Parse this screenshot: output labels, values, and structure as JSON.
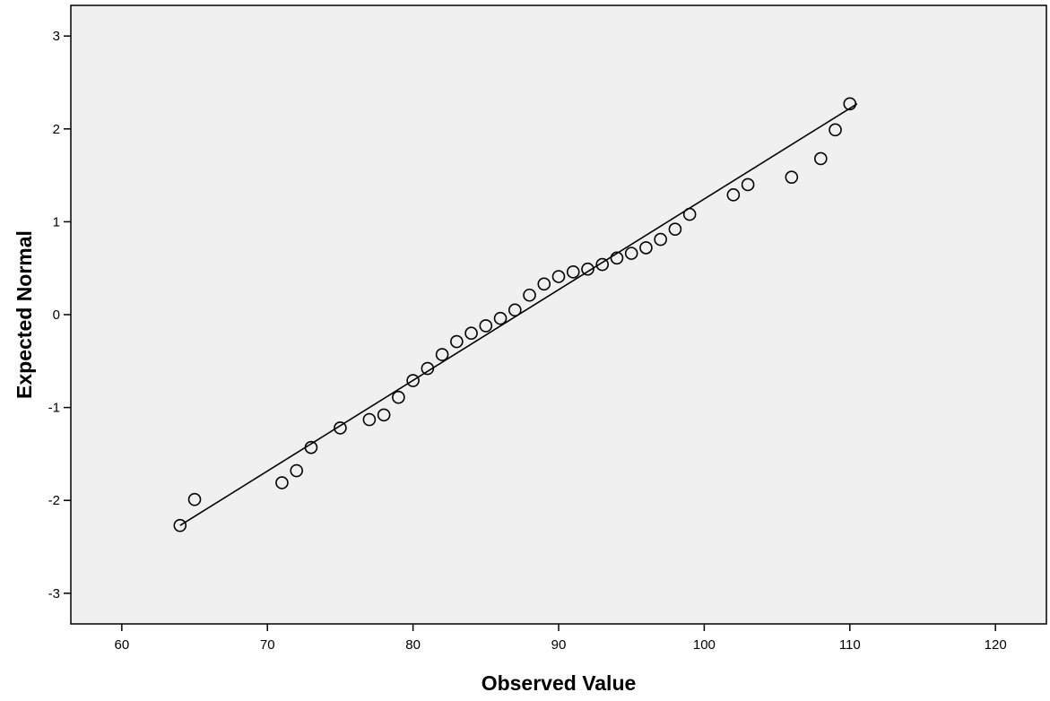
{
  "chart_data": {
    "type": "scatter",
    "title": "",
    "xlabel": "Observed Value",
    "ylabel": "Expected Normal",
    "xlim": [
      56.5,
      123.5
    ],
    "ylim": [
      -3.33,
      3.33
    ],
    "x_ticks": [
      60,
      70,
      80,
      90,
      100,
      110,
      120
    ],
    "y_ticks": [
      -3,
      -2,
      -1,
      0,
      1,
      2,
      3
    ],
    "grid": false,
    "background_color": "#f0f0f0",
    "marker": "open-circle",
    "reference_line": {
      "x": [
        64,
        110.5
      ],
      "y": [
        -2.27,
        2.27
      ]
    },
    "points": [
      {
        "x": 64,
        "y": -2.27
      },
      {
        "x": 65,
        "y": -1.99
      },
      {
        "x": 71,
        "y": -1.81
      },
      {
        "x": 72,
        "y": -1.68
      },
      {
        "x": 73,
        "y": -1.43
      },
      {
        "x": 75,
        "y": -1.22
      },
      {
        "x": 77,
        "y": -1.13
      },
      {
        "x": 78,
        "y": -1.08
      },
      {
        "x": 79,
        "y": -0.89
      },
      {
        "x": 80,
        "y": -0.71
      },
      {
        "x": 81,
        "y": -0.58
      },
      {
        "x": 82,
        "y": -0.43
      },
      {
        "x": 83,
        "y": -0.29
      },
      {
        "x": 84,
        "y": -0.2
      },
      {
        "x": 85,
        "y": -0.12
      },
      {
        "x": 86,
        "y": -0.04
      },
      {
        "x": 87,
        "y": 0.05
      },
      {
        "x": 88,
        "y": 0.21
      },
      {
        "x": 89,
        "y": 0.33
      },
      {
        "x": 90,
        "y": 0.41
      },
      {
        "x": 91,
        "y": 0.46
      },
      {
        "x": 92,
        "y": 0.49
      },
      {
        "x": 93,
        "y": 0.54
      },
      {
        "x": 94,
        "y": 0.61
      },
      {
        "x": 95,
        "y": 0.66
      },
      {
        "x": 96,
        "y": 0.72
      },
      {
        "x": 97,
        "y": 0.81
      },
      {
        "x": 98,
        "y": 0.92
      },
      {
        "x": 99,
        "y": 1.08
      },
      {
        "x": 102,
        "y": 1.29
      },
      {
        "x": 103,
        "y": 1.4
      },
      {
        "x": 106,
        "y": 1.48
      },
      {
        "x": 108,
        "y": 1.68
      },
      {
        "x": 109,
        "y": 1.99
      },
      {
        "x": 110,
        "y": 2.27
      }
    ]
  }
}
